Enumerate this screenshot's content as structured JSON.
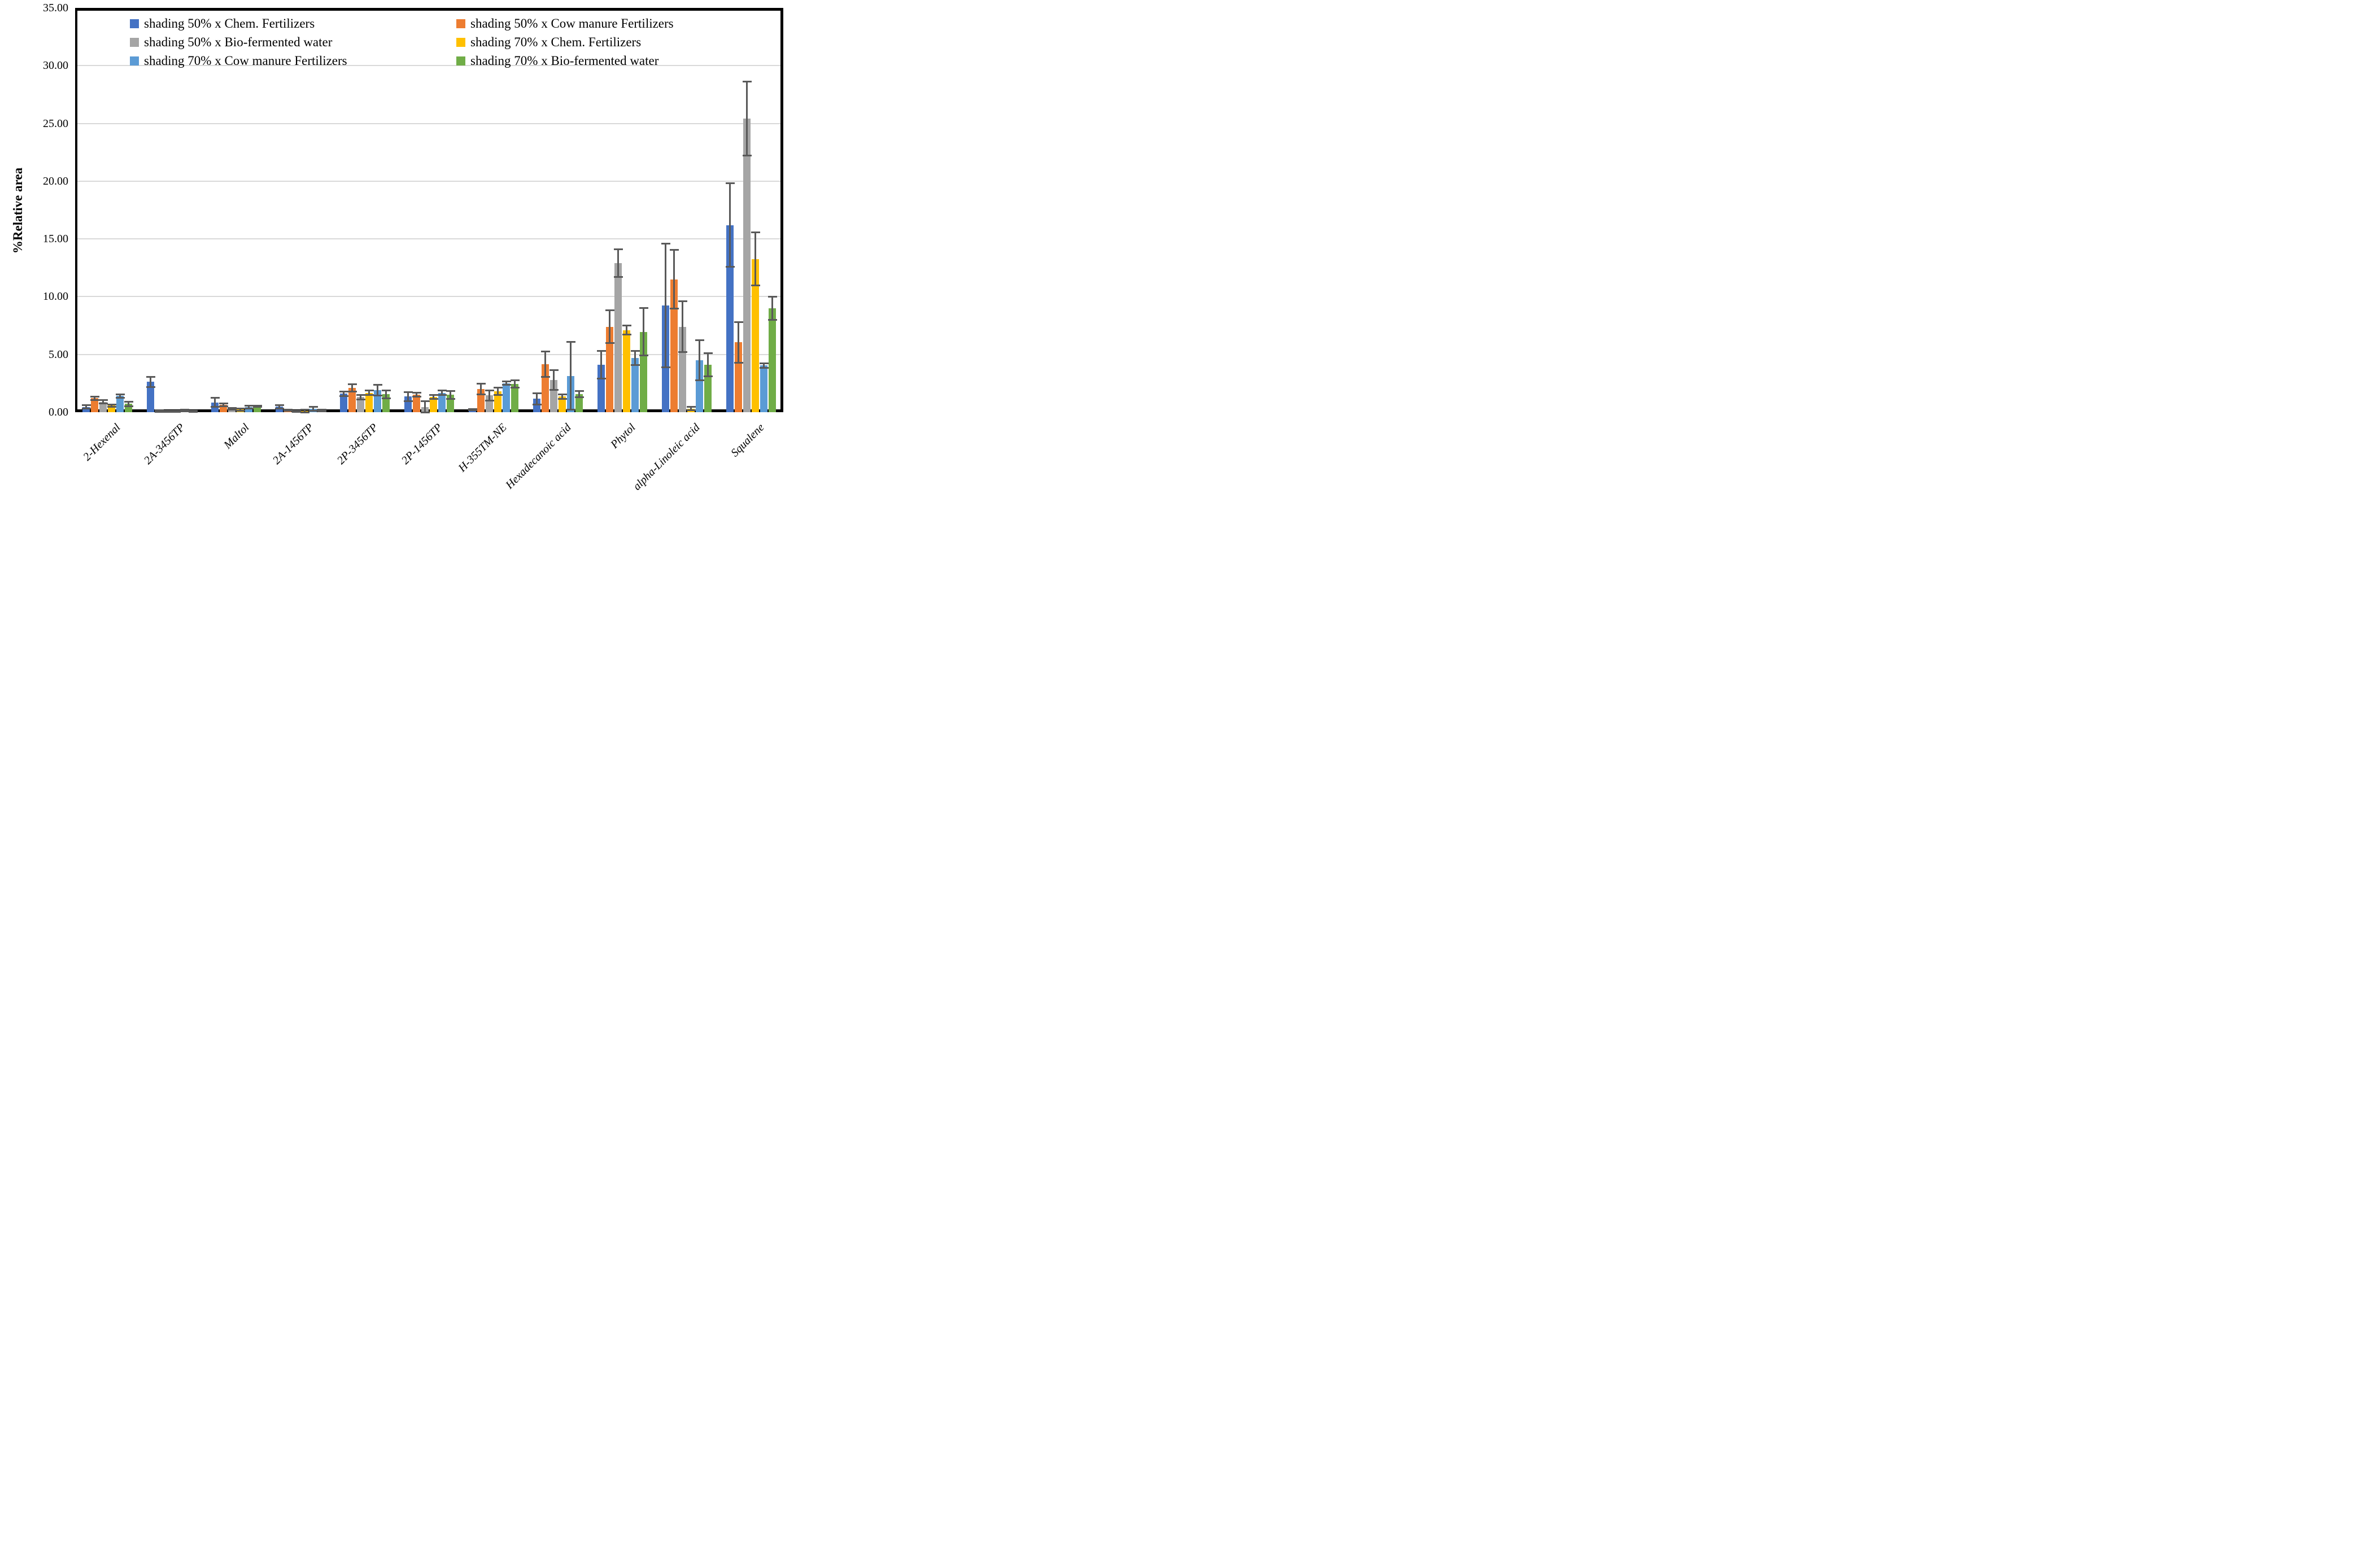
{
  "figure": {
    "background": "#ffffff",
    "border_color": "#000000",
    "gridline_color": "#d9d9d9",
    "error_bar_color": "#595959"
  },
  "y_axis": {
    "title": "%Relative area",
    "tick_labels": [
      "0.00",
      "5.00",
      "10.00",
      "15.00",
      "20.00",
      "25.00",
      "30.00",
      "35.00"
    ],
    "min": 0,
    "max": 35,
    "step": 5
  },
  "legend": {
    "position": "top",
    "columns": [
      [
        {
          "label": "shading 50% x Chem. Fertilizers",
          "color": "#4472C4"
        },
        {
          "label": "shading 50% x Bio-fermented water",
          "color": "#A5A5A5"
        },
        {
          "label": "shading 70% x Cow manure Fertilizers",
          "color": "#5B9BD5"
        }
      ],
      [
        {
          "label": "shading 50% x Cow manure Fertilizers",
          "color": "#ED7D31"
        },
        {
          "label": "shading 70% x Chem. Fertilizers",
          "color": "#FFC000"
        },
        {
          "label": "shading 70% x Bio-fermented water",
          "color": "#70AD47"
        }
      ]
    ]
  },
  "chart_data": {
    "type": "bar",
    "title": "",
    "xlabel": "",
    "ylabel": "%Relative area",
    "ylim": [
      0,
      35
    ],
    "ytick_step": 5,
    "grid": true,
    "legend_position": "top",
    "error_bars": true,
    "categories": [
      "2-Hexenal",
      "2A-3456TP",
      "Maltol",
      "2A-1456TP",
      "2P-3456TP",
      "2P-1456TP",
      "H-355TM-NE",
      "Hexadecanoic acid",
      "Phytol",
      "alpha-Linoleic acid",
      "Squalene"
    ],
    "series": [
      {
        "name": "shading 50% x Chem. Fertilizers",
        "color": "#4472C4",
        "values": [
          0.45,
          2.62,
          0.85,
          0.47,
          1.6,
          1.35,
          0.2,
          1.15,
          4.1,
          9.25,
          16.2
        ],
        "errors": [
          0.15,
          0.45,
          0.4,
          0.15,
          0.2,
          0.4,
          0.05,
          0.5,
          1.2,
          5.35,
          3.6
        ]
      },
      {
        "name": "shading 50% x Cow manure Fertilizers",
        "color": "#ED7D31",
        "values": [
          1.2,
          0.1,
          0.63,
          0.18,
          2.1,
          1.5,
          2.0,
          4.15,
          7.4,
          11.5,
          6.05
        ],
        "errors": [
          0.15,
          0.08,
          0.13,
          0.05,
          0.3,
          0.17,
          0.45,
          1.1,
          1.4,
          2.55,
          1.75
        ]
      },
      {
        "name": "shading 50% x Bio-fermented water",
        "color": "#A5A5A5",
        "values": [
          0.9,
          0.08,
          0.3,
          0.08,
          1.3,
          0.45,
          1.45,
          2.8,
          12.9,
          7.4,
          25.4
        ],
        "errors": [
          0.13,
          0.05,
          0.06,
          0.04,
          0.18,
          0.5,
          0.45,
          0.85,
          1.2,
          2.2,
          3.2
        ]
      },
      {
        "name": "shading 70% x Chem. Fertilizers",
        "color": "#FFC000",
        "values": [
          0.58,
          0.08,
          0.22,
          0.1,
          1.68,
          1.3,
          1.8,
          1.35,
          7.1,
          0.3,
          13.25
        ],
        "errors": [
          0.1,
          0.05,
          0.1,
          0.1,
          0.2,
          0.17,
          0.33,
          0.2,
          0.4,
          0.15,
          2.3
        ]
      },
      {
        "name": "shading 70% x Cow manure Fertilizers",
        "color": "#5B9BD5",
        "values": [
          1.4,
          0.15,
          0.44,
          0.3,
          1.9,
          1.68,
          2.5,
          3.15,
          4.7,
          4.5,
          4.05
        ],
        "errors": [
          0.15,
          0.06,
          0.13,
          0.17,
          0.48,
          0.2,
          0.15,
          2.95,
          0.6,
          1.75,
          0.2
        ]
      },
      {
        "name": "shading 70% x Bio-fermented water",
        "color": "#70AD47",
        "values": [
          0.72,
          0.06,
          0.5,
          0.15,
          1.55,
          1.5,
          2.45,
          1.55,
          6.95,
          4.1,
          9.0
        ],
        "errors": [
          0.2,
          0.04,
          0.05,
          0.07,
          0.34,
          0.35,
          0.3,
          0.27,
          2.05,
          1.0,
          1.0
        ]
      }
    ]
  }
}
